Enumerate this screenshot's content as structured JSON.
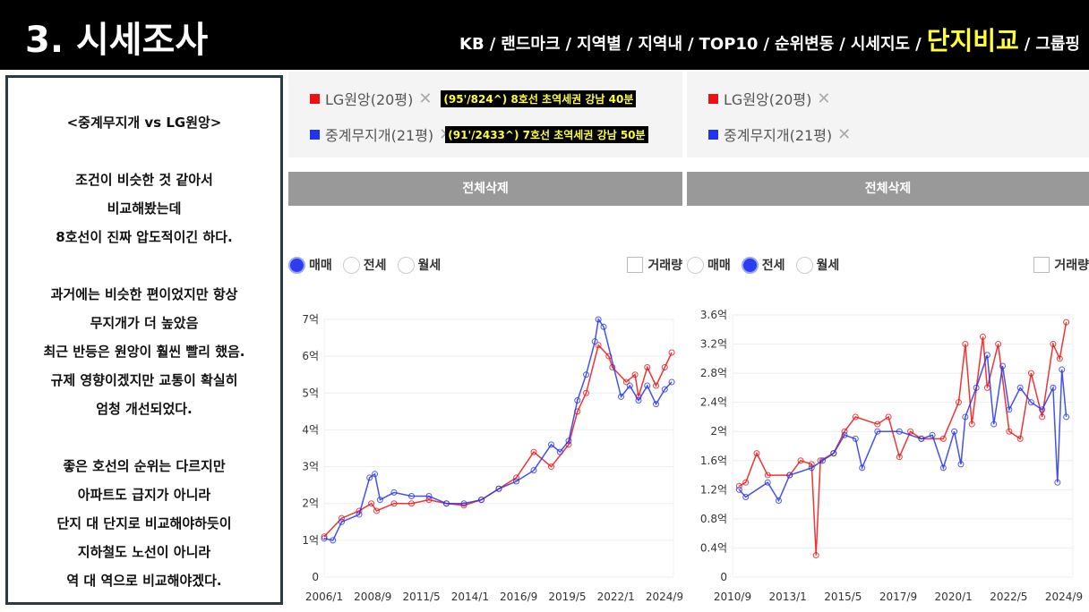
{
  "header": {
    "title": "3. 시세조사",
    "nav": [
      "KB",
      "랜드마크",
      "지역별",
      "지역내",
      "TOP10",
      "순위변동",
      "시세지도",
      "단지비교",
      "그룹핑"
    ],
    "active": "단지비교",
    "sep": "/"
  },
  "note": [
    "<중계무지개  vs LG원앙>",
    "",
    "조건이 비슷한 것 같아서",
    "비교해봤는데",
    "8호선이 진짜 압도적이긴 하다.",
    "",
    "과거에는 비슷한 편이었지만 항상",
    "무지개가 더 높았음",
    "최근 반등은 원앙이 훨씬 빨리 했음.",
    "규제 영향이겠지만 교통이 확실히",
    "엄청 개선되었다.",
    "",
    "좋은 호선의 순위는 다르지만",
    "아파트도 급지가 아니라",
    "단지 대 단지로 비교해야하듯이",
    "지하철도 노선이 아니라",
    "역 대 역으로 비교해야겠다."
  ],
  "colors": {
    "lg": "#ee1111",
    "jg": "#2233ee"
  },
  "panels": [
    {
      "legend": [
        {
          "name": "LG원앙(20평)",
          "note": "(95'/824^) 8호선 초역세권 강남 40분"
        },
        {
          "name": "중계무지개(21평)",
          "note": "(91'/2433^) 7호선 초역세권 강남 50분"
        }
      ],
      "delete": "전체삭제",
      "radios": [
        "매매",
        "전세",
        "월세"
      ],
      "selected": 0,
      "volume": "거래량"
    },
    {
      "legend": [
        {
          "name": "LG원앙(20평)"
        },
        {
          "name": "중계무지개(21평)"
        }
      ],
      "delete": "전체삭제",
      "radios": [
        "매매",
        "전세",
        "월세"
      ],
      "selected": 1,
      "volume": "거래량"
    }
  ],
  "chart_data": [
    {
      "type": "line",
      "title": "매매",
      "ylabel": "억",
      "ylim": [
        0,
        7
      ],
      "yticks": [
        "0",
        "1억",
        "2억",
        "3억",
        "4억",
        "5억",
        "6억",
        "7억"
      ],
      "xticks": [
        "2006/1",
        "2008/9",
        "2011/5",
        "2014/1",
        "2016/9",
        "2019/5",
        "2022/1",
        "2024/9"
      ],
      "xlim": [
        2006,
        2026
      ],
      "grid": true,
      "series": [
        {
          "name": "LG원앙(20평)",
          "x": [
            2006,
            2007,
            2008,
            2008.7,
            2009,
            2010,
            2011,
            2012,
            2013,
            2014,
            2015,
            2016,
            2017,
            2018,
            2019,
            2020,
            2020.5,
            2021,
            2021.7,
            2022.3,
            2022.5,
            2023.3,
            2023.8,
            2024,
            2024.5,
            2025,
            2025.5,
            2025.9
          ],
          "y": [
            1.1,
            1.6,
            1.8,
            2.0,
            1.8,
            2.0,
            2.0,
            2.1,
            2.0,
            1.95,
            2.1,
            2.4,
            2.7,
            3.4,
            3.0,
            3.6,
            4.5,
            5.0,
            6.3,
            6.0,
            5.7,
            5.3,
            5.5,
            4.9,
            5.7,
            5.2,
            5.7,
            6.1
          ]
        },
        {
          "name": "중계무지개(21평)",
          "x": [
            2006,
            2006.5,
            2007,
            2008,
            2008.6,
            2008.9,
            2009.2,
            2010,
            2011,
            2012,
            2013,
            2014,
            2015,
            2016,
            2017,
            2018,
            2019,
            2019.5,
            2020,
            2020.5,
            2021,
            2021.5,
            2021.7,
            2022,
            2023,
            2023.5,
            2024,
            2024.5,
            2025,
            2025.5,
            2025.9
          ],
          "y": [
            1.05,
            1.0,
            1.5,
            1.7,
            2.7,
            2.8,
            2.1,
            2.3,
            2.2,
            2.2,
            2.0,
            2.0,
            2.1,
            2.4,
            2.6,
            2.9,
            3.6,
            3.4,
            3.7,
            4.8,
            5.5,
            6.4,
            7.0,
            6.8,
            4.9,
            5.2,
            4.8,
            5.2,
            4.7,
            5.1,
            5.3
          ]
        }
      ]
    },
    {
      "type": "line",
      "title": "전세",
      "ylabel": "억",
      "ylim": [
        0,
        3.6
      ],
      "yticks": [
        "0",
        "0.4억",
        "0.8억",
        "1.2억",
        "1.6억",
        "2억",
        "2.4억",
        "2.8억",
        "3.2억",
        "3.6억"
      ],
      "xticks": [
        "2010/9",
        "2013/1",
        "2015/5",
        "2017/9",
        "2020/1",
        "2022/5",
        "2024/9"
      ],
      "xlim": [
        2010.4,
        2025.9
      ],
      "grid": true,
      "series": [
        {
          "name": "LG원앙(20평)",
          "x": [
            2010.7,
            2011,
            2011.5,
            2012,
            2013,
            2013.5,
            2014,
            2014.2,
            2014.4,
            2015,
            2015.5,
            2016,
            2017,
            2017.5,
            2018,
            2018.5,
            2019,
            2020,
            2020.7,
            2021,
            2021.3,
            2021.8,
            2022,
            2022.5,
            2023,
            2023.5,
            2024,
            2024.5,
            2025,
            2025.3,
            2025.6
          ],
          "y": [
            1.25,
            1.3,
            1.7,
            1.4,
            1.4,
            1.6,
            1.55,
            0.3,
            1.6,
            1.7,
            2.0,
            2.2,
            2.1,
            2.2,
            1.65,
            2.0,
            1.9,
            1.9,
            2.4,
            3.2,
            2.1,
            3.3,
            2.6,
            3.2,
            2.0,
            1.9,
            2.8,
            2.2,
            3.2,
            3.0,
            3.5
          ]
        },
        {
          "name": "중계무지개(21평)",
          "x": [
            2010.7,
            2011,
            2012,
            2012.5,
            2013,
            2014,
            2014.5,
            2015,
            2015.5,
            2016,
            2016.3,
            2017,
            2018,
            2019,
            2019.5,
            2020,
            2020.5,
            2020.8,
            2021,
            2021.5,
            2022,
            2022.3,
            2022.7,
            2023,
            2023.5,
            2024,
            2024.5,
            2025,
            2025.2,
            2025.4,
            2025.6
          ],
          "y": [
            1.2,
            1.1,
            1.3,
            1.05,
            1.4,
            1.5,
            1.6,
            1.7,
            1.95,
            1.9,
            1.5,
            2.0,
            2.0,
            1.9,
            1.95,
            1.5,
            2.0,
            1.55,
            2.2,
            2.6,
            3.05,
            2.1,
            2.9,
            2.3,
            2.6,
            2.4,
            2.3,
            2.6,
            1.3,
            2.85,
            2.2
          ]
        }
      ]
    }
  ]
}
